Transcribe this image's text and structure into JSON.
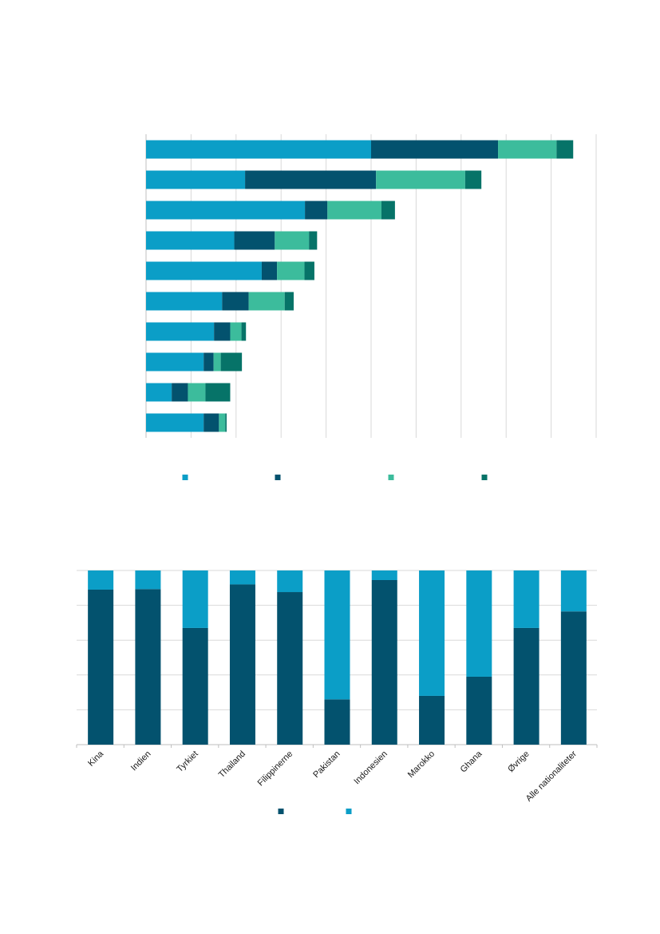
{
  "chart_data": [
    {
      "type": "bar",
      "orientation": "horizontal",
      "stacked": true,
      "title": "",
      "xlabel": "",
      "ylabel": "",
      "xlim": [
        0,
        100
      ],
      "categories": [
        "",
        "",
        "",
        "",
        "",
        "",
        "",
        "",
        "",
        ""
      ],
      "series": [
        {
          "name": "",
          "color": "#0b9ec7",
          "values": [
            50,
            22,
            35.3,
            19.6,
            25.7,
            16.9,
            15.1,
            12.8,
            5.7,
            12.8
          ]
        },
        {
          "name": "",
          "color": "#03526e",
          "values": [
            28.2,
            29.1,
            5,
            9,
            3.4,
            5.9,
            3.6,
            2.2,
            3.6,
            3.4
          ]
        },
        {
          "name": "",
          "color": "#3cbc9c",
          "values": [
            13,
            19.8,
            12,
            7.6,
            6.1,
            8,
            2.5,
            1.6,
            3.9,
            1.4
          ]
        },
        {
          "name": "",
          "color": "#067368",
          "values": [
            3.7,
            3.6,
            3,
            1.8,
            2.2,
            2,
            1,
            4.7,
            5.5,
            0.3
          ]
        }
      ]
    },
    {
      "type": "bar",
      "orientation": "vertical",
      "stacked": true,
      "percent": true,
      "title": "",
      "xlabel": "",
      "ylabel": "",
      "ylim": [
        0,
        100
      ],
      "categories": [
        "Kina",
        "Indien",
        "Tyrkiet",
        "Thailand",
        "Filippinerne",
        "Pakistan",
        "Indonesien",
        "Marokko",
        "Ghana",
        "Øvrige",
        "Alle nationaliteter"
      ],
      "series": [
        {
          "name": "",
          "color": "#03526e",
          "values": [
            89,
            89.3,
            67,
            92,
            87.6,
            26,
            94.5,
            28,
            39,
            67,
            76.5
          ]
        },
        {
          "name": "",
          "color": "#0b9ec7",
          "values": [
            11,
            10.7,
            33,
            8,
            12.4,
            74,
            5.5,
            72,
            61,
            33,
            23.5
          ]
        }
      ]
    }
  ]
}
